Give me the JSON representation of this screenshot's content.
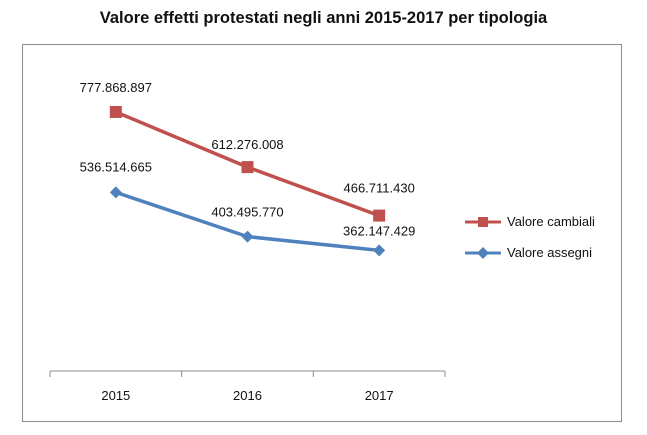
{
  "chart_data": {
    "type": "line",
    "title": "Valore effetti protestati negli anni 2015-2017 per tipologia",
    "categories": [
      "2015",
      "2016",
      "2017"
    ],
    "series": [
      {
        "name": "Valore cambiali",
        "color": "#c0504d",
        "marker": "square",
        "values": [
          777868897,
          612276008,
          466711430
        ],
        "labels": [
          "777.868.897",
          "612.276.008",
          "466.711.430"
        ]
      },
      {
        "name": "Valore assegni",
        "color": "#4f81bd",
        "marker": "diamond",
        "values": [
          536514665,
          403495770,
          362147429
        ],
        "labels": [
          "536.514.665",
          "403.495.770",
          "362.147.429"
        ]
      }
    ],
    "ylim": [
      0,
      1000000000
    ],
    "xlabel": "",
    "ylabel": "",
    "grid": false,
    "legend": "right"
  }
}
